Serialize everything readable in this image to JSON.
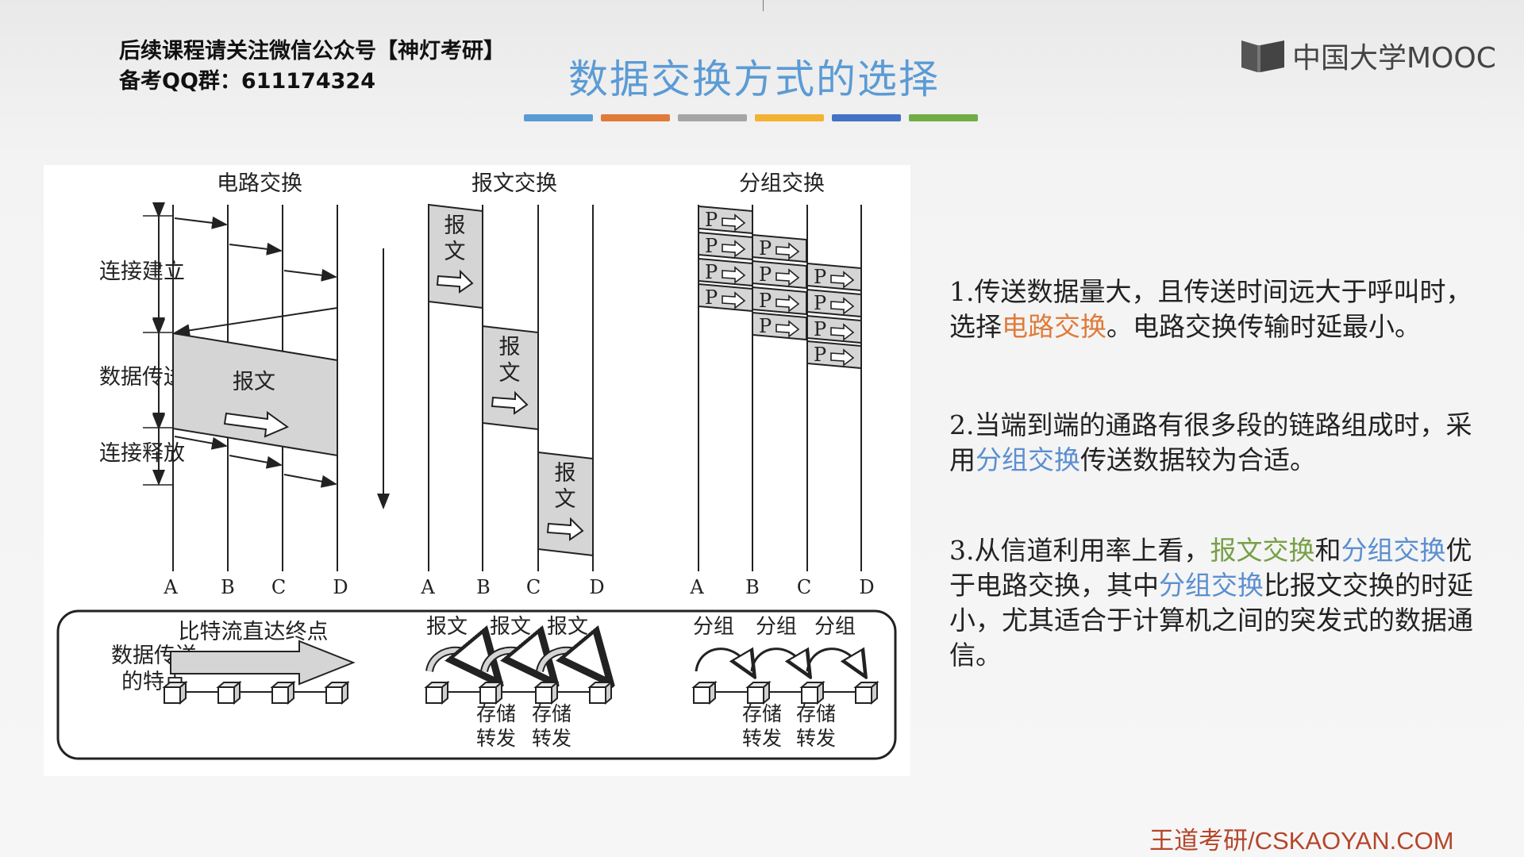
{
  "header": {
    "line1": "后续课程请关注微信公众号【神灯考研】",
    "line2": "备考QQ群：611174324"
  },
  "title": "数据交换方式的选择",
  "color_bars": [
    "#5b9bd5",
    "#e07b39",
    "#a5a5a5",
    "#f4b233",
    "#4472c4",
    "#70ad47"
  ],
  "logo": {
    "text": "中国大学MOOC",
    "icon": "mooc-book-icon"
  },
  "diagram": {
    "sections": [
      "电路交换",
      "报文交换",
      "分组交换"
    ],
    "phases": [
      "连接建立",
      "数据传送",
      "连接释放"
    ],
    "nodes": [
      "A",
      "B",
      "C",
      "D"
    ],
    "message_char1": "报",
    "message_char2": "文",
    "message_label": "报文",
    "packet_label": "P",
    "bottom": {
      "label_line1": "数据传送",
      "label_line2": "的特点",
      "circuit_text": "比特流直达终点",
      "message_hops": [
        "报文",
        "报文",
        "报文"
      ],
      "packet_hops": [
        "分组",
        "分组",
        "分组"
      ],
      "store_line1": "存储",
      "store_line2": "转发"
    }
  },
  "points": [
    {
      "number": "1.",
      "segments": [
        {
          "text": "传送数据量大，且传送时间远大于呼叫时，选择",
          "color": "normal"
        },
        {
          "text": "电路交换",
          "color": "orange"
        },
        {
          "text": "。电路交换传输时延最小。",
          "color": "normal"
        }
      ]
    },
    {
      "number": "2.",
      "segments": [
        {
          "text": "当端到端的通路有很多段的链路组成时，采用",
          "color": "normal"
        },
        {
          "text": "分组交换",
          "color": "blue"
        },
        {
          "text": "传送数据较为合适。",
          "color": "normal"
        }
      ]
    },
    {
      "number": "3.",
      "segments": [
        {
          "text": "从信道利用率上看，",
          "color": "normal"
        },
        {
          "text": "报文交换",
          "color": "green"
        },
        {
          "text": "和",
          "color": "normal"
        },
        {
          "text": "分组交换",
          "color": "blue"
        },
        {
          "text": "优于电路交换，其中",
          "color": "normal"
        },
        {
          "text": "分组交换",
          "color": "blue"
        },
        {
          "text": "比报文交换的时延小，尤其适合于计算机之间的突发式的数据通信。",
          "color": "normal"
        }
      ]
    }
  ],
  "footer": "王道考研/CSKAOYAN.COM"
}
